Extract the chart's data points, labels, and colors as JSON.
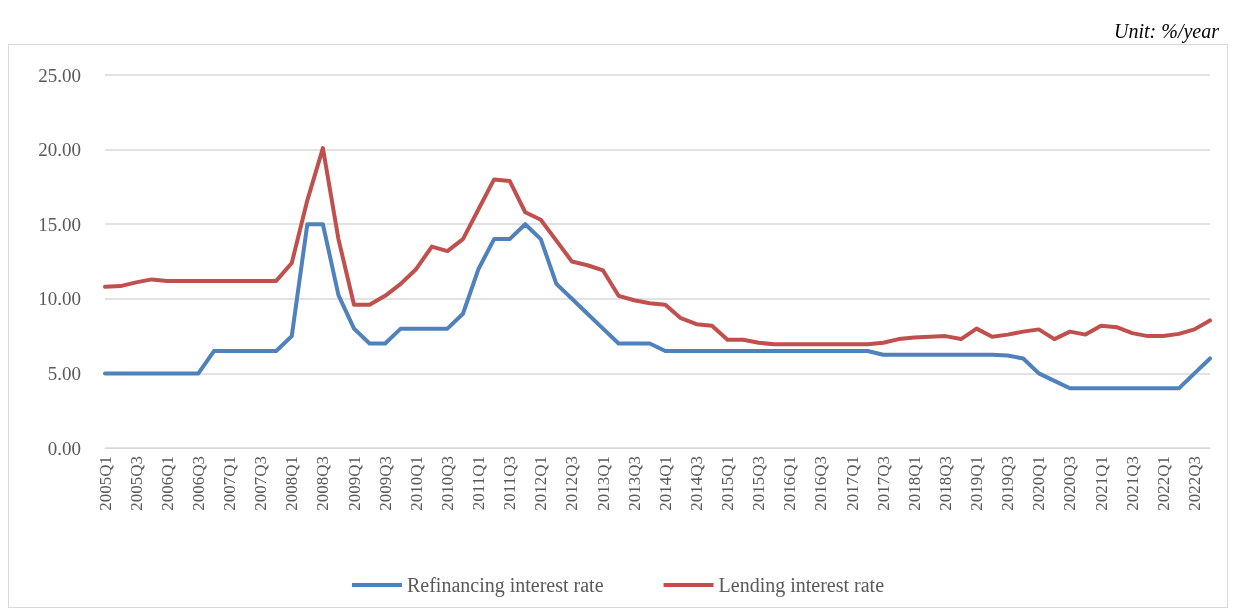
{
  "chart_data": {
    "type": "line",
    "annotations": [
      "Unit: %/year"
    ],
    "categories": [
      "2005Q1",
      null,
      "2005Q3",
      null,
      "2006Q1",
      null,
      "2006Q3",
      null,
      "2007Q1",
      null,
      "2007Q3",
      null,
      "2008Q1",
      null,
      "2008Q3",
      null,
      "2009Q1",
      null,
      "2009Q3",
      null,
      "2010Q1",
      null,
      "2010Q3",
      null,
      "2011Q1",
      null,
      "2011Q3",
      null,
      "2012Q1",
      null,
      "2012Q3",
      null,
      "2013Q1",
      null,
      "2013Q3",
      null,
      "2014Q1",
      null,
      "2014Q3",
      null,
      "2015Q1",
      null,
      "2015Q3",
      null,
      "2016Q1",
      null,
      "2016Q3",
      null,
      "2017Q1",
      null,
      "2017Q3",
      null,
      "2018Q1",
      null,
      "2018Q3",
      null,
      "2019Q1",
      null,
      "2019Q3",
      null,
      "2020Q1",
      null,
      "2020Q3",
      null,
      "2021Q1",
      null,
      "2021Q3",
      null,
      "2022Q1",
      null,
      "2022Q3",
      null
    ],
    "series": [
      {
        "name": "Refinancing interest rate",
        "color": "#4f81bd",
        "values": [
          5,
          5,
          5,
          5,
          5,
          5,
          5,
          6.5,
          6.5,
          6.5,
          6.5,
          6.5,
          7.5,
          15,
          15,
          10.25,
          8,
          7,
          7,
          8,
          8,
          8,
          8,
          9,
          12,
          14,
          14,
          15,
          14,
          11,
          10,
          9,
          8,
          7,
          7,
          7,
          6.5,
          6.5,
          6.5,
          6.5,
          6.5,
          6.5,
          6.5,
          6.5,
          6.5,
          6.5,
          6.5,
          6.5,
          6.5,
          6.5,
          6.25,
          6.25,
          6.25,
          6.25,
          6.25,
          6.25,
          6.25,
          6.25,
          6.2,
          6,
          5,
          4.5,
          4,
          4,
          4,
          4,
          4,
          4,
          4,
          4,
          5,
          6
        ]
      },
      {
        "name": "Lending interest rate",
        "color": "#c0504d",
        "values": [
          10.8,
          10.85,
          11.1,
          11.3,
          11.2,
          11.2,
          11.2,
          11.2,
          11.2,
          11.2,
          11.2,
          11.2,
          12.4,
          16.6,
          20.1,
          14,
          9.6,
          9.6,
          10.2,
          11,
          12,
          13.5,
          13.2,
          14,
          16,
          18,
          17.9,
          15.8,
          15.3,
          13.9,
          12.5,
          12.25,
          11.9,
          10.2,
          9.9,
          9.7,
          9.6,
          8.7,
          8.3,
          8.2,
          7.25,
          7.25,
          7.05,
          6.95,
          6.95,
          6.95,
          6.95,
          6.95,
          6.95,
          6.95,
          7.05,
          7.3,
          7.4,
          7.45,
          7.5,
          7.3,
          8,
          7.45,
          7.6,
          7.8,
          7.95,
          7.3,
          7.8,
          7.6,
          8.2,
          8.1,
          7.7,
          7.5,
          7.5,
          7.65,
          7.95,
          8.55
        ]
      }
    ],
    "ylim": [
      0,
      25
    ],
    "yticks": [
      {
        "value": 0,
        "label": "0.00"
      },
      {
        "value": 5,
        "label": "5.00"
      },
      {
        "value": 10,
        "label": "10.00"
      },
      {
        "value": 15,
        "label": "15.00"
      },
      {
        "value": 20,
        "label": "20.00"
      },
      {
        "value": 25,
        "label": "25.00"
      }
    ],
    "grid": "y",
    "legend": "bottom",
    "marker": "none",
    "line_style": "solid"
  }
}
